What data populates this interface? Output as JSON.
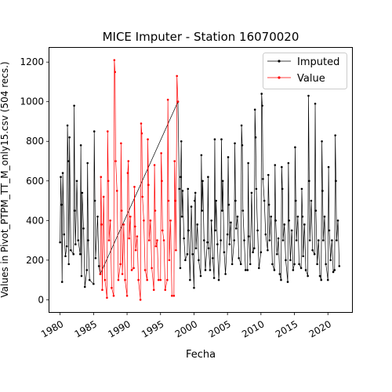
{
  "chart_data": {
    "type": "line",
    "title": "MICE Imputer - Station 16070020",
    "xlabel": "Fecha",
    "ylabel": "Values in Pivot_PTPM_TT_M_only15.csv (504 recs.)",
    "xlim": [
      1978.4,
      2023.6
    ],
    "ylim": [
      -62,
      1272
    ],
    "x_ticks": [
      1980,
      1985,
      1990,
      1995,
      2000,
      2005,
      2010,
      2015,
      2020
    ],
    "x_tick_labels": [
      "1980",
      "1985",
      "1990",
      "1995",
      "2000",
      "2005",
      "2010",
      "2015",
      "2020"
    ],
    "y_ticks": [
      0,
      200,
      400,
      600,
      800,
      1000,
      1200
    ],
    "y_tick_labels": [
      "0",
      "200",
      "400",
      "600",
      "800",
      "1000",
      "1200"
    ],
    "grid": false,
    "legend_position": "top-right",
    "series": [
      {
        "name": "Imputed",
        "color": "#000000",
        "points": [
          [
            1980.0,
            290
          ],
          [
            1980.1,
            620
          ],
          [
            1980.2,
            480
          ],
          [
            1980.3,
            90
          ],
          [
            1980.4,
            640
          ],
          [
            1980.6,
            330
          ],
          [
            1980.8,
            220
          ],
          [
            1981.0,
            270
          ],
          [
            1981.1,
            880
          ],
          [
            1981.2,
            700
          ],
          [
            1981.3,
            180
          ],
          [
            1981.4,
            820
          ],
          [
            1981.6,
            250
          ],
          [
            1982.0,
            230
          ],
          [
            1982.1,
            980
          ],
          [
            1982.2,
            450
          ],
          [
            1982.3,
            280
          ],
          [
            1982.5,
            600
          ],
          [
            1982.7,
            300
          ],
          [
            1983.0,
            230
          ],
          [
            1983.1,
            780
          ],
          [
            1983.2,
            120
          ],
          [
            1983.3,
            540
          ],
          [
            1983.5,
            360
          ],
          [
            1983.7,
            65
          ],
          [
            1984.0,
            150
          ],
          [
            1984.1,
            690
          ],
          [
            1984.2,
            300
          ],
          [
            1984.4,
            100
          ],
          [
            1985.0,
            80
          ],
          [
            1985.1,
            850
          ],
          [
            1985.2,
            500
          ],
          [
            1985.3,
            210
          ],
          [
            1985.6,
            420
          ],
          [
            1985.8,
            170
          ],
          [
            1986.0,
            130
          ],
          [
            1997.6,
            1000
          ],
          [
            1997.8,
            560
          ],
          [
            1997.95,
            160
          ],
          [
            1998.0,
            620
          ],
          [
            1998.1,
            800
          ],
          [
            1998.2,
            420
          ],
          [
            1998.3,
            550
          ],
          [
            1998.5,
            310
          ],
          [
            1998.7,
            200
          ],
          [
            1999.0,
            230
          ],
          [
            1999.1,
            560
          ],
          [
            1999.2,
            350
          ],
          [
            1999.4,
            100
          ],
          [
            1999.6,
            470
          ],
          [
            1999.8,
            230
          ],
          [
            2000.0,
            60
          ],
          [
            2000.1,
            500
          ],
          [
            2000.2,
            540
          ],
          [
            2000.3,
            260
          ],
          [
            2000.5,
            380
          ],
          [
            2000.7,
            200
          ],
          [
            2001.0,
            120
          ],
          [
            2001.1,
            730
          ],
          [
            2001.2,
            450
          ],
          [
            2001.3,
            600
          ],
          [
            2001.5,
            300
          ],
          [
            2001.7,
            150
          ],
          [
            2002.0,
            290
          ],
          [
            2002.1,
            620
          ],
          [
            2002.2,
            260
          ],
          [
            2002.4,
            150
          ],
          [
            2002.6,
            400
          ],
          [
            2002.8,
            210
          ],
          [
            2003.0,
            110
          ],
          [
            2003.1,
            810
          ],
          [
            2003.2,
            350
          ],
          [
            2003.3,
            500
          ],
          [
            2003.5,
            280
          ],
          [
            2003.7,
            100
          ],
          [
            2004.0,
            300
          ],
          [
            2004.1,
            810
          ],
          [
            2004.2,
            450
          ],
          [
            2004.3,
            600
          ],
          [
            2004.5,
            240
          ],
          [
            2004.7,
            130
          ],
          [
            2005.0,
            330
          ],
          [
            2005.1,
            720
          ],
          [
            2005.2,
            480
          ],
          [
            2005.3,
            280
          ],
          [
            2005.5,
            390
          ],
          [
            2005.7,
            180
          ],
          [
            2006.0,
            300
          ],
          [
            2006.1,
            790
          ],
          [
            2006.2,
            500
          ],
          [
            2006.3,
            360
          ],
          [
            2006.5,
            420
          ],
          [
            2006.7,
            210
          ],
          [
            2007.0,
            180
          ],
          [
            2007.1,
            880
          ],
          [
            2007.2,
            780
          ],
          [
            2007.3,
            450
          ],
          [
            2007.5,
            300
          ],
          [
            2007.7,
            150
          ],
          [
            2008.0,
            150
          ],
          [
            2008.1,
            690
          ],
          [
            2008.2,
            320
          ],
          [
            2008.4,
            180
          ],
          [
            2008.6,
            540
          ],
          [
            2008.8,
            240
          ],
          [
            2009.0,
            260
          ],
          [
            2009.1,
            960
          ],
          [
            2009.2,
            820
          ],
          [
            2009.3,
            560
          ],
          [
            2009.5,
            350
          ],
          [
            2009.7,
            160
          ],
          [
            2010.0,
            240
          ],
          [
            2010.1,
            1040
          ],
          [
            2010.2,
            980
          ],
          [
            2010.3,
            610
          ],
          [
            2010.5,
            500
          ],
          [
            2010.7,
            330
          ],
          [
            2011.0,
            250
          ],
          [
            2011.1,
            630
          ],
          [
            2011.2,
            480
          ],
          [
            2011.3,
            300
          ],
          [
            2011.5,
            420
          ],
          [
            2011.7,
            180
          ],
          [
            2012.0,
            150
          ],
          [
            2012.1,
            680
          ],
          [
            2012.2,
            400
          ],
          [
            2012.4,
            230
          ],
          [
            2012.6,
            310
          ],
          [
            2012.8,
            130
          ],
          [
            2013.0,
            100
          ],
          [
            2013.1,
            670
          ],
          [
            2013.2,
            560
          ],
          [
            2013.3,
            300
          ],
          [
            2013.5,
            380
          ],
          [
            2013.7,
            200
          ],
          [
            2014.0,
            90
          ],
          [
            2014.1,
            690
          ],
          [
            2014.2,
            400
          ],
          [
            2014.4,
            200
          ],
          [
            2014.6,
            350
          ],
          [
            2014.8,
            150
          ],
          [
            2015.0,
            180
          ],
          [
            2015.1,
            770
          ],
          [
            2015.2,
            500
          ],
          [
            2015.3,
            300
          ],
          [
            2015.5,
            420
          ],
          [
            2015.7,
            180
          ],
          [
            2016.0,
            160
          ],
          [
            2016.1,
            560
          ],
          [
            2016.2,
            420
          ],
          [
            2016.3,
            220
          ],
          [
            2016.5,
            380
          ],
          [
            2016.7,
            150
          ],
          [
            2017.0,
            120
          ],
          [
            2017.1,
            1030
          ],
          [
            2017.2,
            600
          ],
          [
            2017.3,
            300
          ],
          [
            2017.5,
            500
          ],
          [
            2017.7,
            250
          ],
          [
            2018.0,
            230
          ],
          [
            2018.1,
            990
          ],
          [
            2018.2,
            450
          ],
          [
            2018.4,
            180
          ],
          [
            2018.6,
            300
          ],
          [
            2018.8,
            120
          ],
          [
            2019.0,
            100
          ],
          [
            2019.1,
            800
          ],
          [
            2019.2,
            550
          ],
          [
            2019.3,
            300
          ],
          [
            2019.5,
            420
          ],
          [
            2019.7,
            180
          ],
          [
            2020.0,
            100
          ],
          [
            2020.1,
            670
          ],
          [
            2020.2,
            350
          ],
          [
            2020.4,
            200
          ],
          [
            2020.6,
            300
          ],
          [
            2020.8,
            140
          ],
          [
            2021.0,
            150
          ],
          [
            2021.1,
            830
          ],
          [
            2021.2,
            600
          ],
          [
            2021.3,
            300
          ],
          [
            2021.5,
            400
          ],
          [
            2021.7,
            170
          ]
        ]
      },
      {
        "name": "Value",
        "color": "#ff0000",
        "points": [
          [
            1986.0,
            130
          ],
          [
            1986.1,
            620
          ],
          [
            1986.2,
            380
          ],
          [
            1986.3,
            50
          ],
          [
            1986.5,
            520
          ],
          [
            1986.7,
            100
          ],
          [
            1987.0,
            10
          ],
          [
            1987.1,
            850
          ],
          [
            1987.2,
            600
          ],
          [
            1987.3,
            300
          ],
          [
            1987.5,
            400
          ],
          [
            1987.7,
            60
          ],
          [
            1988.0,
            20
          ],
          [
            1988.1,
            1210
          ],
          [
            1988.2,
            1150
          ],
          [
            1988.3,
            700
          ],
          [
            1988.5,
            550
          ],
          [
            1988.7,
            100
          ],
          [
            1989.0,
            180
          ],
          [
            1989.1,
            790
          ],
          [
            1989.2,
            450
          ],
          [
            1989.3,
            130
          ],
          [
            1989.5,
            380
          ],
          [
            1989.7,
            100
          ],
          [
            1990.0,
            20
          ],
          [
            1990.1,
            640
          ],
          [
            1990.2,
            700
          ],
          [
            1990.3,
            310
          ],
          [
            1990.5,
            420
          ],
          [
            1990.7,
            150
          ],
          [
            1991.0,
            160
          ],
          [
            1991.1,
            570
          ],
          [
            1991.2,
            370
          ],
          [
            1991.3,
            250
          ],
          [
            1991.5,
            320
          ],
          [
            1991.7,
            100
          ],
          [
            1992.0,
            0
          ],
          [
            1992.1,
            890
          ],
          [
            1992.2,
            840
          ],
          [
            1992.3,
            520
          ],
          [
            1992.5,
            400
          ],
          [
            1992.7,
            150
          ],
          [
            1993.0,
            100
          ],
          [
            1993.1,
            810
          ],
          [
            1993.2,
            580
          ],
          [
            1993.3,
            300
          ],
          [
            1993.5,
            400
          ],
          [
            1993.7,
            160
          ],
          [
            1994.0,
            50
          ],
          [
            1994.1,
            680
          ],
          [
            1994.2,
            450
          ],
          [
            1994.3,
            270
          ],
          [
            1994.5,
            300
          ],
          [
            1994.7,
            100
          ],
          [
            1995.0,
            100
          ],
          [
            1995.1,
            740
          ],
          [
            1995.2,
            600
          ],
          [
            1995.3,
            350
          ],
          [
            1995.5,
            300
          ],
          [
            1995.7,
            50
          ],
          [
            1996.0,
            100
          ],
          [
            1996.1,
            1010
          ],
          [
            1996.2,
            500
          ],
          [
            1996.3,
            200
          ],
          [
            1996.5,
            400
          ],
          [
            1996.7,
            20
          ],
          [
            1997.0,
            20
          ],
          [
            1997.1,
            700
          ],
          [
            1997.2,
            500
          ],
          [
            1997.3,
            250
          ],
          [
            1997.45,
            1130
          ],
          [
            1997.6,
            1000
          ]
        ]
      }
    ]
  }
}
